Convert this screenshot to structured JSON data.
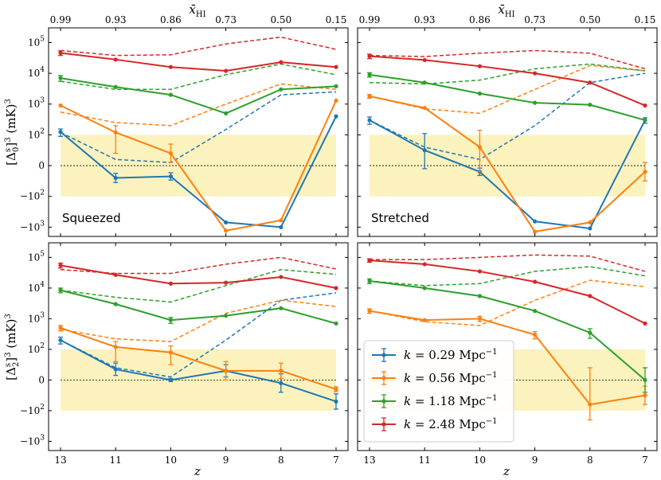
{
  "figure": {
    "top_axis_label": "x̄_HI",
    "x_axis_label": "z",
    "y_label_top": "[Δ_0^s]^3 (mK)^3",
    "y_label_bottom": "[Δ_2^s]^3 (mK)^3"
  },
  "chart_data": {
    "type": "line",
    "x": [
      13,
      11,
      10,
      9,
      8,
      7
    ],
    "x_tick_labels": [
      "13",
      "11",
      "10",
      "9",
      "8",
      "7"
    ],
    "top_tick_labels": [
      "0.99",
      "0.93",
      "0.86",
      "0.73",
      "0.50",
      "0.15"
    ],
    "y_scale": "symlog",
    "y_linthresh": 100,
    "ylim": [
      -2000,
      300000
    ],
    "y_tick_labels": [
      "10^5",
      "10^4",
      "10^3",
      "10^2",
      "0",
      "-10^2",
      "-10^3"
    ],
    "shaded_band": [
      -100,
      100
    ],
    "zero_line": true,
    "legend": [
      {
        "name": "k = 0.29 Mpc^-1",
        "text_main": "k = 0.29 Mpc",
        "text_sup": "−1",
        "color": "#1f77b4"
      },
      {
        "name": "k = 0.56 Mpc^-1",
        "text_main": "k = 0.56 Mpc",
        "text_sup": "−1",
        "color": "#ff7f0e"
      },
      {
        "name": "k = 1.18 Mpc^-1",
        "text_main": "k = 1.18 Mpc",
        "text_sup": "−1",
        "color": "#2ca02c"
      },
      {
        "name": "k = 2.48 Mpc^-1",
        "text_main": "k = 2.48 Mpc",
        "text_sup": "−1",
        "color": "#d62728"
      }
    ],
    "panels": [
      {
        "title": "Squeezed",
        "solid": [
          [
            125,
            -40,
            -35,
            -700,
            -1000,
            400
          ],
          [
            900,
            120,
            40,
            -1300,
            -600,
            1300
          ],
          [
            7000,
            3600,
            2000,
            500,
            3000,
            3800
          ],
          [
            46000,
            28000,
            16000,
            12000,
            23000,
            16000
          ]
        ],
        "errors": [
          [
            30,
            15,
            12,
            0,
            0,
            0
          ],
          [
            0,
            80,
            30,
            0,
            0,
            0
          ],
          [
            1500,
            0,
            0,
            0,
            0,
            0
          ],
          [
            8000,
            0,
            0,
            0,
            0,
            0
          ]
        ],
        "dashed": [
          [
            120,
            20,
            10,
            150,
            2000,
            2500
          ],
          [
            550,
            250,
            200,
            1000,
            4500,
            3000
          ],
          [
            5500,
            3000,
            3000,
            9000,
            20000,
            9000
          ],
          [
            55000,
            38000,
            40000,
            90000,
            150000,
            60000
          ]
        ]
      },
      {
        "title": "Stretched",
        "solid": [
          [
            300,
            50,
            -20,
            -650,
            -1100,
            300
          ],
          [
            1800,
            750,
            60,
            -1400,
            -700,
            -20
          ],
          [
            9000,
            5000,
            2200,
            1100,
            950,
            300
          ],
          [
            36000,
            27000,
            17000,
            10000,
            5000,
            900
          ]
        ],
        "errors": [
          [
            80,
            60,
            12,
            0,
            0,
            60
          ],
          [
            250,
            0,
            80,
            0,
            0,
            30
          ],
          [
            1500,
            0,
            0,
            0,
            0,
            0
          ],
          [
            6000,
            0,
            0,
            0,
            0,
            0
          ]
        ],
        "dashed": [
          [
            300,
            60,
            20,
            200,
            5000,
            10000
          ],
          [
            1800,
            700,
            500,
            3000,
            18000,
            12000
          ],
          [
            5000,
            4500,
            6000,
            14000,
            20000,
            12000
          ],
          [
            38000,
            35000,
            45000,
            55000,
            45000,
            14000
          ]
        ]
      },
      {
        "title": "",
        "solid": [
          [
            200,
            35,
            0,
            30,
            -10,
            -70
          ],
          [
            500,
            120,
            90,
            30,
            30,
            -30
          ],
          [
            8500,
            3000,
            900,
            1250,
            2200,
            700
          ],
          [
            55000,
            27000,
            14000,
            15000,
            23000,
            10000
          ]
        ],
        "errors": [
          [
            50,
            20,
            5,
            20,
            30,
            25
          ],
          [
            100,
            60,
            40,
            30,
            25,
            8
          ],
          [
            1500,
            0,
            200,
            0,
            0,
            0
          ],
          [
            10000,
            0,
            0,
            0,
            0,
            0
          ]
        ],
        "dashed": [
          [
            200,
            40,
            10,
            200,
            4000,
            7000
          ],
          [
            450,
            220,
            180,
            1500,
            4000,
            2500
          ],
          [
            8500,
            5000,
            3500,
            12000,
            40000,
            28000
          ],
          [
            40000,
            30000,
            30000,
            60000,
            100000,
            42000
          ]
        ]
      },
      {
        "title": "",
        "solid": [
          null,
          [
            1800,
            900,
            1000,
            300,
            -80,
            -50
          ],
          [
            17000,
            10000,
            5500,
            1800,
            350,
            0
          ],
          [
            80000,
            60000,
            35000,
            16000,
            5500,
            700
          ]
        ],
        "errors": [
          null,
          [
            300,
            0,
            200,
            80,
            120,
            30
          ],
          [
            3000,
            0,
            0,
            0,
            120,
            40
          ],
          [
            10000,
            0,
            0,
            0,
            0,
            0
          ]
        ],
        "dashed": [
          null,
          [
            1800,
            800,
            600,
            4000,
            18000,
            11000
          ],
          [
            17000,
            12000,
            14000,
            35000,
            50000,
            25000
          ],
          [
            85000,
            85000,
            100000,
            120000,
            110000,
            35000
          ]
        ]
      }
    ]
  }
}
